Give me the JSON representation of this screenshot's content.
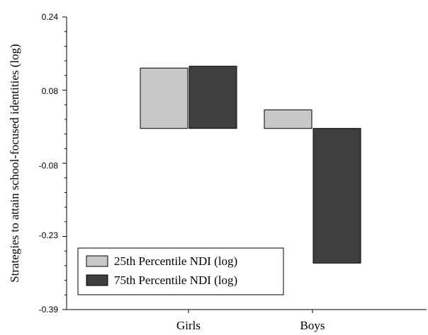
{
  "chart_data": {
    "type": "bar",
    "categories": [
      "Girls",
      "Boys"
    ],
    "series": [
      {
        "name": "25th Percentile NDI (log)",
        "values": [
          0.13,
          0.04
        ],
        "color": "#c8c8c8"
      },
      {
        "name": "75th Percentile NDI (log)",
        "values": [
          0.134,
          -0.29
        ],
        "color": "#3f3f3f"
      }
    ],
    "ylabel": "Strategies to attain school-focused identities (log)",
    "xlabel": "",
    "ylim": [
      -0.39,
      0.24
    ],
    "yticks": [
      "0.24",
      "0.08",
      "-0.08",
      "-0.23",
      "-0.39"
    ],
    "ytick_values": [
      0.24,
      0.08,
      -0.08,
      -0.23,
      -0.39
    ],
    "legend_position": "bottom-left",
    "grid": false
  }
}
